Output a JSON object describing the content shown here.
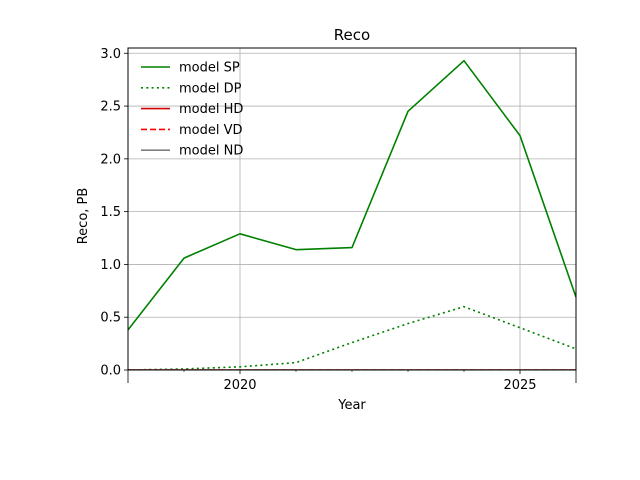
{
  "chart_data": {
    "type": "line",
    "title": "Reco",
    "xlabel": "Year",
    "ylabel": "Reco, PB",
    "xlim": [
      2018,
      2026
    ],
    "ylim": [
      0.0,
      3.05
    ],
    "x_ticks": [
      2020,
      2025
    ],
    "x_tick_labels": [
      "2020",
      "2025"
    ],
    "y_ticks": [
      0.0,
      0.5,
      1.0,
      1.5,
      2.0,
      2.5,
      3.0
    ],
    "y_tick_labels": [
      "0.0",
      "0.5",
      "1.0",
      "1.5",
      "2.0",
      "2.5",
      "3.0"
    ],
    "grid": true,
    "legend_position": "top-left",
    "x": [
      2018,
      2019,
      2020,
      2021,
      2022,
      2023,
      2024,
      2025,
      2026
    ],
    "series": [
      {
        "name": "model SP",
        "color": "#008000",
        "style": "solid",
        "values": [
          0.38,
          1.06,
          1.29,
          1.14,
          1.16,
          2.45,
          2.93,
          2.22,
          0.69
        ]
      },
      {
        "name": "model DP",
        "color": "#008000",
        "style": "dotted",
        "values": [
          0.0,
          0.01,
          0.03,
          0.07,
          0.26,
          0.44,
          0.6,
          0.4,
          0.2
        ]
      },
      {
        "name": "model HD",
        "color": "#d00000",
        "style": "solid",
        "values": [
          0.0,
          0.0,
          0.0,
          0.0,
          0.0,
          0.0,
          0.0,
          0.0,
          0.0
        ]
      },
      {
        "name": "model VD",
        "color": "#ff0000",
        "style": "dashed",
        "values": [
          0.0,
          0.0,
          0.0,
          0.0,
          0.0,
          0.0,
          0.0,
          0.0,
          0.0
        ]
      },
      {
        "name": "model ND",
        "color": "#808080",
        "style": "solid",
        "values": [
          0.0,
          0.0,
          0.0,
          0.0,
          0.0,
          0.0,
          0.0,
          0.0,
          0.0
        ]
      }
    ]
  }
}
